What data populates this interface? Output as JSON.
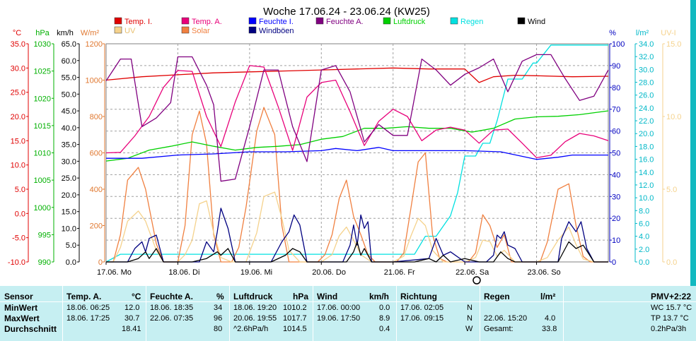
{
  "chart_data": {
    "type": "line",
    "title": "Woche 17.06.24 - 23.06.24 (KW25)",
    "x": [
      "17.06. Mo",
      "18.06. Di",
      "19.06. Mi",
      "20.06. Do",
      "21.06. Fr",
      "22.06. Sa",
      "23.06. So"
    ],
    "xlim": [
      0,
      7
    ],
    "grid": true,
    "legend_position": "top",
    "axes": [
      {
        "key": "temp",
        "label": "°C",
        "color": "#e00000",
        "ticks": [
          "35.0",
          "30.0",
          "25.0",
          "20.0",
          "15.0",
          "10.0",
          "5.0",
          "0.0",
          "-5.0",
          "-10.0"
        ],
        "ylim": [
          -10,
          35
        ]
      },
      {
        "key": "press",
        "label": "hPa",
        "color": "#00b000",
        "ticks": [
          "1030",
          "1025",
          "1020",
          "1015",
          "1010",
          "1005",
          "1000",
          "995",
          "990"
        ],
        "ylim": [
          990,
          1030
        ]
      },
      {
        "key": "wind",
        "label": "km/h",
        "color": "#000000",
        "ticks": [
          "65.0",
          "60.0",
          "55.0",
          "50.0",
          "45.0",
          "40.0",
          "35.0",
          "30.0",
          "25.0",
          "20.0",
          "15.0",
          "10.0",
          "5.0",
          "0.0"
        ],
        "ylim": [
          0,
          65
        ]
      },
      {
        "key": "solar",
        "label": "W/m²",
        "color": "#e07830",
        "ticks": [
          "1200",
          "1000",
          "800",
          "600",
          "400",
          "200",
          "0"
        ],
        "ylim": [
          0,
          1200
        ]
      },
      {
        "key": "hum",
        "label": "%",
        "color": "#0000c0",
        "ticks": [
          "100",
          "90",
          "80",
          "70",
          "60",
          "50",
          "40",
          "30",
          "20",
          "10",
          "0"
        ],
        "ylim": [
          0,
          100
        ]
      },
      {
        "key": "rain",
        "label": "l/m²",
        "color": "#00b8c8",
        "ticks": [
          "34.0",
          "32.0",
          "30.0",
          "28.0",
          "26.0",
          "24.0",
          "22.0",
          "20.0",
          "18.0",
          "16.0",
          "14.0",
          "12.0",
          "10.0",
          "8.0",
          "6.0",
          "4.0",
          "2.0",
          "0.0"
        ],
        "ylim": [
          0,
          34
        ]
      },
      {
        "key": "uv",
        "label": "UV-I",
        "color": "#f5d28c",
        "ticks": [
          "15.0",
          "10.0",
          "5.0",
          "0.0"
        ],
        "ylim": [
          0,
          15
        ]
      }
    ],
    "legend": [
      {
        "name": "Temp. I.",
        "color": "#e00000"
      },
      {
        "name": "Temp. A.",
        "color": "#e8007a"
      },
      {
        "name": "Feuchte I.",
        "color": "#0000ff"
      },
      {
        "name": "Feuchte A.",
        "color": "#800080"
      },
      {
        "name": "Luftdruck",
        "color": "#00d000"
      },
      {
        "name": "Regen",
        "color": "#00e0e0"
      },
      {
        "name": "Wind",
        "color": "#000000"
      },
      {
        "name": "UV",
        "color": "#f5d28c"
      },
      {
        "name": "Solar",
        "color": "#f08040"
      },
      {
        "name": "Windböen",
        "color": "#000080"
      }
    ],
    "series": [
      {
        "name": "Temp. I.",
        "axis": "temp",
        "color": "#e00000",
        "x": [
          0,
          0.5,
          1,
          1.5,
          2,
          2.5,
          3,
          3.5,
          4,
          4.5,
          5,
          5.2,
          5.4,
          5.7,
          6,
          6.5,
          7
        ],
        "values": [
          27.5,
          28.2,
          28.6,
          29.0,
          29.2,
          29.4,
          29.6,
          29.8,
          30.0,
          29.8,
          29.8,
          27.0,
          28.2,
          28.5,
          28.4,
          28.2,
          28.3
        ]
      },
      {
        "name": "Temp. A.",
        "axis": "temp",
        "color": "#e8007a",
        "x": [
          0,
          0.2,
          0.4,
          0.6,
          0.8,
          1,
          1.2,
          1.4,
          1.6,
          1.8,
          2,
          2.2,
          2.4,
          2.6,
          2.8,
          3,
          3.2,
          3.4,
          3.6,
          3.8,
          4,
          4.2,
          4.4,
          4.6,
          4.8,
          5,
          5.2,
          5.4,
          5.6,
          5.8,
          6,
          6.2,
          6.4,
          6.6,
          6.8,
          7
        ],
        "values": [
          12.5,
          12.6,
          16,
          20,
          26,
          29.5,
          29.3,
          20,
          13.8,
          23,
          30.5,
          30.2,
          22,
          13,
          24,
          27,
          27.5,
          21,
          14,
          19,
          21.5,
          20,
          15,
          17.2,
          17.8,
          17.2,
          14.5,
          17.2,
          17.4,
          14.5,
          11.5,
          12,
          14.8,
          16.5,
          16,
          15
        ]
      },
      {
        "name": "Feuchte I.",
        "axis": "hum",
        "color": "#0000ff",
        "x": [
          0,
          0.5,
          1,
          1.5,
          2,
          2.5,
          3,
          3.2,
          3.5,
          3.8,
          4,
          4.4,
          4.8,
          5,
          5.5,
          6,
          6.3,
          6.5,
          7
        ],
        "values": [
          47.5,
          47.5,
          49,
          49.5,
          50.5,
          50.5,
          51,
          52,
          51,
          52.5,
          51,
          51,
          51,
          51,
          50.5,
          47,
          48,
          49,
          49
        ]
      },
      {
        "name": "Feuchte A.",
        "axis": "hum",
        "color": "#800080",
        "x": [
          0,
          0.2,
          0.35,
          0.5,
          0.7,
          0.9,
          1,
          1.2,
          1.4,
          1.5,
          1.6,
          1.8,
          2,
          2.2,
          2.4,
          2.6,
          2.8,
          3,
          3.2,
          3.4,
          3.6,
          3.8,
          4,
          4.2,
          4.4,
          4.6,
          4.8,
          5,
          5.2,
          5.4,
          5.6,
          5.8,
          6,
          6.2,
          6.4,
          6.6,
          6.8,
          7
        ],
        "values": [
          83,
          93,
          93,
          62,
          66,
          73,
          94,
          94,
          81,
          72,
          37,
          38,
          62,
          88,
          88,
          62,
          46,
          88,
          90,
          78,
          55,
          63,
          58,
          58,
          93,
          88,
          81,
          86,
          89,
          93,
          78,
          92,
          95,
          95,
          84,
          74,
          76,
          88
        ]
      },
      {
        "name": "Luftdruck",
        "axis": "press",
        "color": "#00d000",
        "x": [
          0,
          0.3,
          0.6,
          0.9,
          1.2,
          1.5,
          1.8,
          2.1,
          2.4,
          2.7,
          3,
          3.3,
          3.6,
          3.9,
          4.2,
          4.5,
          4.8,
          5.1,
          5.4,
          5.7,
          6,
          6.3,
          6.6,
          7
        ],
        "values": [
          1008.5,
          1009,
          1010.5,
          1011.2,
          1012.0,
          1011.2,
          1010.5,
          1011,
          1011.2,
          1011.5,
          1012.5,
          1013,
          1014.5,
          1014.5,
          1014.8,
          1014.5,
          1014.5,
          1013.8,
          1014.5,
          1016.2,
          1016.6,
          1016.7,
          1017,
          1017.7
        ]
      },
      {
        "name": "Regen",
        "axis": "rain",
        "color": "#00e0e0",
        "x": [
          0,
          0.2,
          1,
          2,
          3,
          4,
          4.3,
          4.45,
          4.6,
          4.8,
          4.9,
          5,
          5.15,
          5.25,
          5.35,
          5.45,
          5.6,
          5.7,
          5.8,
          5.95,
          6,
          6.2,
          7
        ],
        "values": [
          0,
          1.2,
          1.2,
          1.2,
          1.2,
          1.2,
          1.2,
          4,
          4,
          7.2,
          10.8,
          16.5,
          16.5,
          18.5,
          18.5,
          22,
          28.5,
          28.5,
          28.5,
          31,
          31,
          33.8,
          33.8
        ]
      },
      {
        "name": "Solar",
        "axis": "solar",
        "color": "#f08040",
        "x": [
          0,
          0.1,
          0.2,
          0.3,
          0.45,
          0.55,
          0.7,
          0.8,
          0.9,
          1,
          1.1,
          1.2,
          1.3,
          1.4,
          1.5,
          1.6,
          1.75,
          1.85,
          1.95,
          2.1,
          2.2,
          2.35,
          2.45,
          2.55,
          2.7,
          2.8,
          2.95,
          3.05,
          3.15,
          3.25,
          3.35,
          3.45,
          3.55,
          3.65,
          3.75,
          3.9,
          4.05,
          4.15,
          4.25,
          4.35,
          4.45,
          4.55,
          4.65,
          4.75,
          4.85,
          4.95,
          5.05,
          5.15,
          5.25,
          5.35,
          5.45,
          5.55,
          5.65,
          5.75,
          5.85,
          5.95,
          6.05,
          6.15,
          6.3,
          6.45,
          6.55,
          6.65,
          6.75,
          6.85,
          7
        ],
        "values": [
          0,
          0,
          150,
          450,
          520,
          400,
          100,
          0,
          0,
          0,
          200,
          700,
          830,
          650,
          150,
          0,
          0,
          80,
          300,
          720,
          850,
          700,
          200,
          0,
          0,
          0,
          0,
          40,
          150,
          350,
          450,
          250,
          150,
          40,
          0,
          0,
          0,
          50,
          300,
          550,
          600,
          150,
          20,
          0,
          0,
          0,
          0,
          50,
          260,
          200,
          80,
          150,
          0,
          0,
          0,
          0,
          0,
          110,
          400,
          430,
          200,
          30,
          0,
          0,
          0
        ]
      },
      {
        "name": "UV",
        "axis": "uv",
        "color": "#f5d28c",
        "x": [
          0,
          0.1,
          0.2,
          0.3,
          0.45,
          0.55,
          0.7,
          0.8,
          1,
          1.1,
          1.2,
          1.3,
          1.4,
          1.5,
          1.6,
          1.75,
          1.95,
          2.1,
          2.2,
          2.35,
          2.45,
          2.55,
          2.7,
          3,
          3.15,
          3.25,
          3.35,
          3.45,
          3.55,
          3.7,
          4,
          4.15,
          4.25,
          4.35,
          4.45,
          4.55,
          4.7,
          5,
          5.15,
          5.25,
          5.35,
          5.45,
          5.55,
          5.7,
          6,
          6.15,
          6.3,
          6.45,
          6.55,
          6.65,
          6.8,
          7
        ],
        "values": [
          0,
          0,
          1,
          2.8,
          3.5,
          2.8,
          0.8,
          0,
          0,
          0.5,
          1.5,
          4,
          4.2,
          2,
          0.3,
          0,
          0,
          2,
          4.5,
          4.8,
          3,
          0.8,
          0,
          0,
          0.5,
          1.8,
          2.4,
          1.5,
          0.5,
          0,
          0,
          0.4,
          1.8,
          3,
          2.5,
          0.8,
          0,
          0,
          0.3,
          1.5,
          1.4,
          0.4,
          0.8,
          0,
          0,
          0.3,
          1.5,
          2.4,
          1.2,
          0.2,
          0,
          0
        ]
      },
      {
        "name": "Wind",
        "axis": "wind",
        "color": "#000000",
        "x": [
          0,
          0.3,
          0.45,
          0.55,
          0.6,
          0.7,
          0.8,
          1,
          1.2,
          1.4,
          1.55,
          1.6,
          1.7,
          1.8,
          2,
          2.3,
          2.5,
          2.6,
          2.7,
          2.8,
          3,
          3.35,
          3.45,
          3.5,
          3.55,
          3.6,
          3.7,
          3.8,
          4,
          4.3,
          4.5,
          4.6,
          4.7,
          4.8,
          5,
          5.2,
          5.4,
          5.5,
          5.6,
          5.7,
          5.8,
          6,
          6.3,
          6.45,
          6.55,
          6.65,
          6.8,
          7
        ],
        "values": [
          0,
          0,
          1,
          3,
          1,
          4,
          0,
          0,
          0,
          1,
          3,
          2,
          4,
          0,
          0,
          0,
          2,
          4,
          3,
          0,
          0,
          0,
          3,
          6,
          2,
          4,
          0,
          0,
          0,
          0,
          1,
          0,
          2,
          0,
          1,
          0,
          0,
          3,
          1,
          0,
          0,
          0,
          0,
          6,
          4,
          5,
          0,
          0
        ]
      },
      {
        "name": "Windböen",
        "axis": "wind",
        "color": "#000080",
        "x": [
          0,
          0.3,
          0.4,
          0.5,
          0.55,
          0.6,
          0.7,
          0.8,
          1,
          1.3,
          1.4,
          1.5,
          1.55,
          1.6,
          1.7,
          1.8,
          2,
          2.3,
          2.45,
          2.55,
          2.62,
          2.7,
          2.8,
          3,
          3.3,
          3.4,
          3.45,
          3.5,
          3.55,
          3.6,
          3.65,
          3.7,
          3.8,
          4,
          4.5,
          4.6,
          4.7,
          4.8,
          5,
          5.3,
          5.4,
          5.45,
          5.5,
          5.55,
          5.6,
          5.7,
          5.8,
          6,
          6.3,
          6.35,
          6.45,
          6.55,
          6.62,
          6.7,
          6.8,
          7
        ],
        "values": [
          0,
          0,
          4,
          6,
          3,
          7,
          8,
          0,
          0,
          0,
          6,
          3,
          9,
          16,
          10,
          0,
          0,
          0,
          6,
          9,
          14,
          11,
          0,
          0,
          0,
          5,
          11,
          5,
          14,
          10,
          12,
          0,
          0,
          0,
          1,
          7,
          2,
          3,
          0,
          0,
          2,
          8,
          7,
          9,
          5,
          4,
          0,
          0,
          0,
          7,
          12,
          9,
          12,
          4,
          0,
          0
        ]
      }
    ]
  },
  "table": {
    "headers": {
      "sensor": "Sensor",
      "temp": "Temp. A.",
      "temp_unit": "°C",
      "hum": "Feuchte A.",
      "hum_unit": "%",
      "press": "Luftdruck",
      "press_unit": "hPa",
      "wind": "Wind",
      "wind_unit": "km/h",
      "dir": "Richtung",
      "rain": "Regen",
      "rain_unit": "l/m²",
      "pmv": "PMV+2:22"
    },
    "rows": [
      {
        "label": "MinWert",
        "temp_time": "18.06.  06:25",
        "temp_val": "12.0",
        "hum_time": "18.06.  18:35",
        "hum_val": "34",
        "press_time": "18.06.  19:20",
        "press_val": "1010.2",
        "wind_time": "17.06.  00:00",
        "wind_val": "0.0",
        "dir_time": "17.06.  02:05",
        "dir_val": "N",
        "rain_time": "",
        "rain_val": "",
        "extra": "WC 15.7 °C"
      },
      {
        "label": "MaxWert",
        "temp_time": "18.06.  17:25",
        "temp_val": "30.7",
        "hum_time": "22.06.  07:35",
        "hum_val": "96",
        "press_time": "20.06.  19:55",
        "press_val": "1017.7",
        "wind_time": "19.06.  17:50",
        "wind_val": "8.9",
        "dir_time": "17.06.  09:15",
        "dir_val": "N",
        "rain_time": "22.06.  15:20",
        "rain_val": "4.0",
        "extra": "TP 13.7 °C"
      },
      {
        "label": "Durchschnitt",
        "temp_time": "",
        "temp_val": "18.41",
        "hum_time": "",
        "hum_val": "80",
        "press_time": "^2.6hPa/h",
        "press_val": "1014.5",
        "wind_time": "",
        "wind_val": "0.4",
        "dir_time": "",
        "dir_val": "W",
        "rain_time": "Gesamt:",
        "rain_val": "33.8",
        "extra": "0.2hPa/3h"
      }
    ]
  }
}
